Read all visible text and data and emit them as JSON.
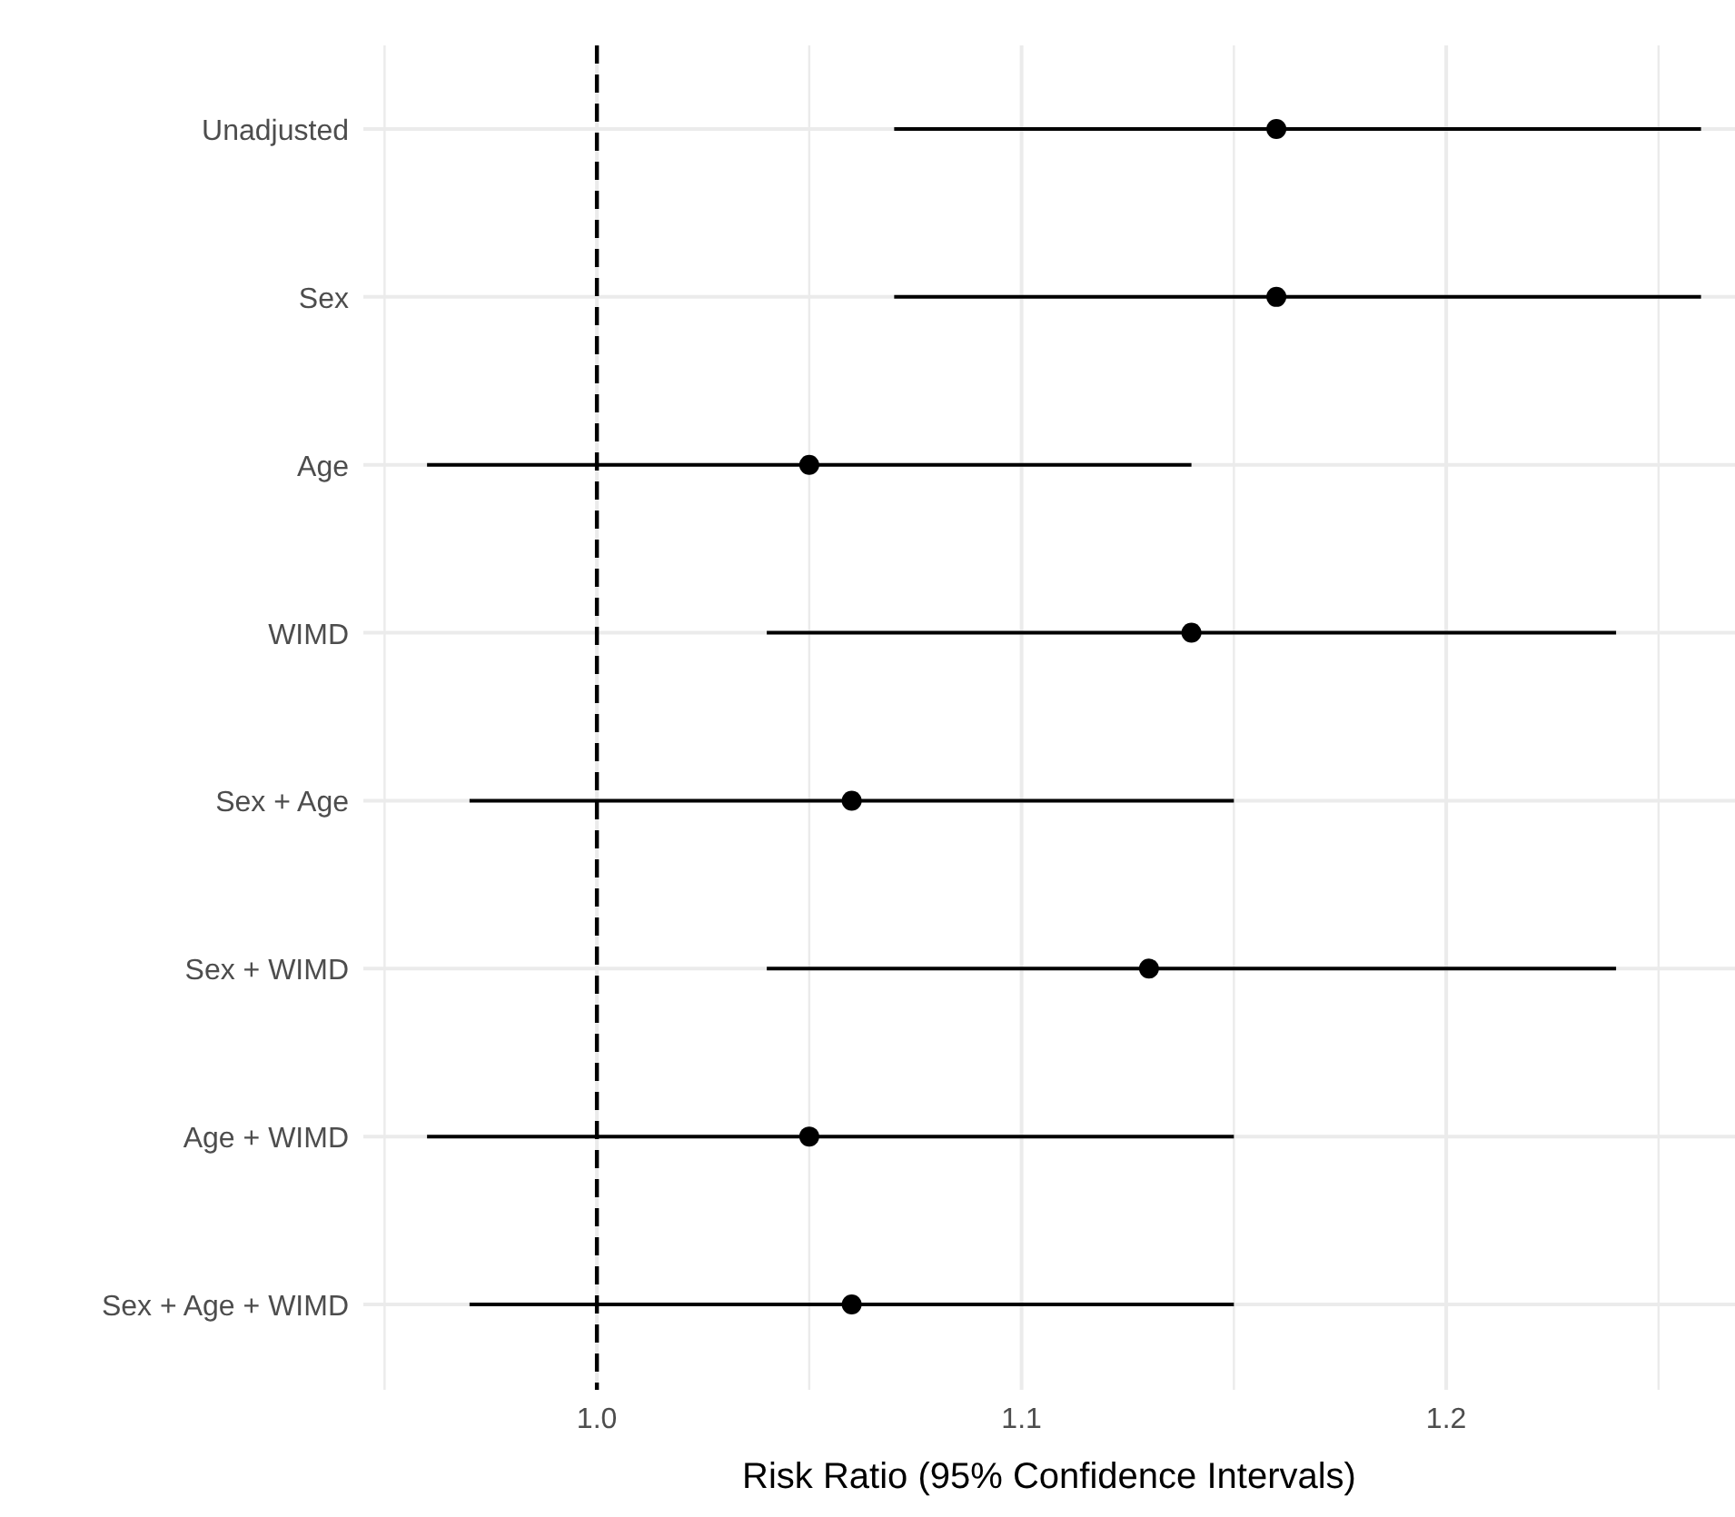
{
  "chart_data": {
    "type": "scatter",
    "orientation": "horizontal",
    "xlabel": "Risk Ratio (95% Confidence Intervals)",
    "categories": [
      "Unadjusted",
      "Sex",
      "Age",
      "WIMD",
      "Sex + Age",
      "Sex + WIMD",
      "Age + WIMD",
      "Sex + Age + WIMD"
    ],
    "values": [
      1.16,
      1.16,
      1.05,
      1.14,
      1.06,
      1.13,
      1.05,
      1.06
    ],
    "errors": [
      [
        1.07,
        1.26
      ],
      [
        1.07,
        1.26
      ],
      [
        0.96,
        1.14
      ],
      [
        1.04,
        1.24
      ],
      [
        0.97,
        1.15
      ],
      [
        1.04,
        1.24
      ],
      [
        0.96,
        1.15
      ],
      [
        0.97,
        1.15
      ]
    ],
    "color": "#000000",
    "marker": "circle",
    "xlim": [
      0.945,
      1.268
    ],
    "xticks": [
      {
        "value": 0.95,
        "label": null
      },
      {
        "value": 1.0,
        "label": "1.0"
      },
      {
        "value": 1.05,
        "label": null
      },
      1.1,
      {
        "value": 1.15,
        "label": null
      },
      1.2,
      {
        "value": 1.25,
        "label": null
      }
    ],
    "ref_lines": [
      {
        "axis": "x",
        "value": 1.0,
        "line_style": "dashed",
        "color": "#000000"
      }
    ],
    "grid": true
  }
}
